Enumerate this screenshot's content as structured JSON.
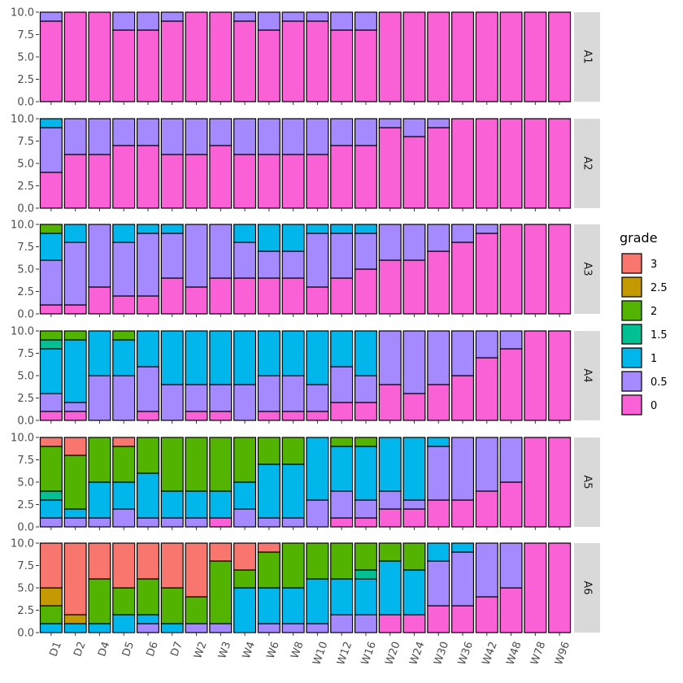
{
  "chart_data": {
    "type": "bar",
    "stacked": true,
    "facet": "rows",
    "categories": [
      "D1",
      "D2",
      "D4",
      "D5",
      "D6",
      "D7",
      "W2",
      "W3",
      "W4",
      "W6",
      "W8",
      "W10",
      "W12",
      "W16",
      "W20",
      "W24",
      "W30",
      "W36",
      "W42",
      "W48",
      "W78",
      "W96"
    ],
    "ylim": [
      0,
      10
    ],
    "yticks": [
      "0.0",
      "2.5",
      "5.0",
      "7.5",
      "10.0"
    ],
    "legend": {
      "title": "grade",
      "position": "right",
      "entries": [
        {
          "label": "3",
          "color": "#F8766D"
        },
        {
          "label": "2.5",
          "color": "#C49A00"
        },
        {
          "label": "2",
          "color": "#53B400"
        },
        {
          "label": "1.5",
          "color": "#00C094"
        },
        {
          "label": "1",
          "color": "#00B6EB"
        },
        {
          "label": "0.5",
          "color": "#A58AFF"
        },
        {
          "label": "0",
          "color": "#FB61D7"
        }
      ]
    },
    "panels": [
      {
        "label": "A1",
        "segments": [
          {
            "0": 9,
            "0.5": 1
          },
          {
            "0": 10
          },
          {
            "0": 10
          },
          {
            "0": 8,
            "0.5": 2
          },
          {
            "0": 8,
            "0.5": 2
          },
          {
            "0": 9,
            "0.5": 1
          },
          {
            "0": 10
          },
          {
            "0": 10
          },
          {
            "0": 9,
            "0.5": 1
          },
          {
            "0": 8,
            "0.5": 2
          },
          {
            "0": 9,
            "0.5": 1
          },
          {
            "0": 9,
            "0.5": 1
          },
          {
            "0": 8,
            "0.5": 2
          },
          {
            "0": 8,
            "0.5": 2
          },
          {
            "0": 10
          },
          {
            "0": 10
          },
          {
            "0": 10
          },
          {
            "0": 10
          },
          {
            "0": 10
          },
          {
            "0": 10
          },
          {
            "0": 10
          },
          {
            "0": 10
          }
        ]
      },
      {
        "label": "A2",
        "segments": [
          {
            "0": 4,
            "0.5": 5,
            "1": 1
          },
          {
            "0": 6,
            "0.5": 4
          },
          {
            "0": 6,
            "0.5": 4
          },
          {
            "0": 7,
            "0.5": 3
          },
          {
            "0": 7,
            "0.5": 3
          },
          {
            "0": 6,
            "0.5": 4
          },
          {
            "0": 6,
            "0.5": 4
          },
          {
            "0": 7,
            "0.5": 3
          },
          {
            "0": 6,
            "0.5": 4
          },
          {
            "0": 6,
            "0.5": 4
          },
          {
            "0": 6,
            "0.5": 4
          },
          {
            "0": 6,
            "0.5": 4
          },
          {
            "0": 7,
            "0.5": 3
          },
          {
            "0": 7,
            "0.5": 3
          },
          {
            "0": 9,
            "0.5": 1
          },
          {
            "0": 8,
            "0.5": 2
          },
          {
            "0": 9,
            "0.5": 1
          },
          {
            "0": 10
          },
          {
            "0": 10
          },
          {
            "0": 10
          },
          {
            "0": 10
          },
          {
            "0": 10
          }
        ]
      },
      {
        "label": "A3",
        "segments": [
          {
            "0": 1,
            "0.5": 5,
            "1": 3,
            "2": 1
          },
          {
            "0": 1,
            "0.5": 7,
            "1": 2
          },
          {
            "0": 3,
            "0.5": 7
          },
          {
            "0": 2,
            "0.5": 6,
            "1": 2
          },
          {
            "0": 2,
            "0.5": 7,
            "1": 1
          },
          {
            "0": 4,
            "0.5": 5,
            "1": 1
          },
          {
            "0": 3,
            "0.5": 7
          },
          {
            "0": 4,
            "0.5": 6
          },
          {
            "0": 4,
            "0.5": 4,
            "1": 2
          },
          {
            "0": 4,
            "0.5": 3,
            "1": 3
          },
          {
            "0": 4,
            "0.5": 3,
            "1": 3
          },
          {
            "0": 3,
            "0.5": 6,
            "1": 1
          },
          {
            "0": 4,
            "0.5": 5,
            "1": 1
          },
          {
            "0": 5,
            "0.5": 4,
            "1": 1
          },
          {
            "0": 6,
            "0.5": 4
          },
          {
            "0": 6,
            "0.5": 4
          },
          {
            "0": 7,
            "0.5": 3
          },
          {
            "0": 8,
            "0.5": 2
          },
          {
            "0": 9,
            "0.5": 1
          },
          {
            "0": 10
          },
          {
            "0": 10
          },
          {
            "0": 10
          }
        ]
      },
      {
        "label": "A4",
        "segments": [
          {
            "0": 1,
            "0.5": 2,
            "1": 5,
            "1.5": 1,
            "2": 1
          },
          {
            "0": 1,
            "0.5": 1,
            "1": 7,
            "2": 1
          },
          {
            "0.5": 5,
            "1": 5
          },
          {
            "0.5": 5,
            "1": 4,
            "2": 1
          },
          {
            "0": 1,
            "0.5": 5,
            "1": 4
          },
          {
            "0.5": 4,
            "1": 6
          },
          {
            "0": 1,
            "0.5": 3,
            "1": 6
          },
          {
            "0": 1,
            "0.5": 3,
            "1": 6
          },
          {
            "0.5": 4,
            "1": 6
          },
          {
            "0": 1,
            "0.5": 4,
            "1": 5
          },
          {
            "0": 1,
            "0.5": 4,
            "1": 5
          },
          {
            "0": 1,
            "0.5": 3,
            "1": 6
          },
          {
            "0": 2,
            "0.5": 4,
            "1": 4
          },
          {
            "0": 2,
            "0.5": 3,
            "1": 5
          },
          {
            "0": 4,
            "0.5": 6
          },
          {
            "0": 3,
            "0.5": 7
          },
          {
            "0": 4,
            "0.5": 6
          },
          {
            "0": 5,
            "0.5": 5
          },
          {
            "0": 7,
            "0.5": 3
          },
          {
            "0": 8,
            "0.5": 2
          },
          {
            "0": 10
          },
          {
            "0": 10
          }
        ]
      },
      {
        "label": "A5",
        "segments": [
          {
            "0.5": 1,
            "1": 2,
            "1.5": 1,
            "2": 5,
            "3": 1
          },
          {
            "0.5": 1,
            "1": 1,
            "2": 6,
            "3": 2
          },
          {
            "0.5": 1,
            "1": 4,
            "2": 5
          },
          {
            "0.5": 2,
            "1": 3,
            "2": 4,
            "3": 1
          },
          {
            "0.5": 1,
            "1": 5,
            "2": 4
          },
          {
            "0.5": 1,
            "1": 3,
            "2": 6
          },
          {
            "0.5": 1,
            "1": 3,
            "2": 6
          },
          {
            "0": 1,
            "1": 3,
            "2": 6
          },
          {
            "0.5": 2,
            "1": 3,
            "2": 5
          },
          {
            "0.5": 1,
            "1": 6,
            "2": 3
          },
          {
            "0.5": 1,
            "1": 6,
            "2": 3
          },
          {
            "0.5": 3,
            "1": 7
          },
          {
            "0": 1,
            "0.5": 3,
            "1": 5,
            "2": 1
          },
          {
            "0": 1,
            "0.5": 2,
            "1": 6,
            "2": 1
          },
          {
            "0": 2,
            "0.5": 2,
            "1": 6
          },
          {
            "0": 2,
            "0.5": 1,
            "1": 7
          },
          {
            "0": 3,
            "0.5": 6,
            "1": 1
          },
          {
            "0": 3,
            "0.5": 7
          },
          {
            "0": 4,
            "0.5": 6
          },
          {
            "0": 5,
            "0.5": 5
          },
          {
            "0": 10
          },
          {
            "0": 10
          }
        ]
      },
      {
        "label": "A6",
        "segments": [
          {
            "1": 1,
            "2": 2,
            "2.5": 2,
            "3": 5
          },
          {
            "1": 1,
            "2.5": 1,
            "3": 8
          },
          {
            "1": 1,
            "2": 5,
            "3": 4
          },
          {
            "1": 2,
            "2": 3,
            "3": 5
          },
          {
            "0.5": 1,
            "1": 1,
            "2": 4,
            "3": 4
          },
          {
            "1": 1,
            "2": 4,
            "3": 5
          },
          {
            "0.5": 1,
            "2": 3,
            "3": 6
          },
          {
            "0.5": 1,
            "2": 7,
            "3": 2
          },
          {
            "1": 5,
            "2": 2,
            "3": 3
          },
          {
            "0.5": 1,
            "1": 4,
            "2": 4,
            "3": 1
          },
          {
            "0.5": 1,
            "1": 4,
            "2": 5
          },
          {
            "0.5": 1,
            "1": 5,
            "2": 4
          },
          {
            "0.5": 2,
            "1": 4,
            "2": 4
          },
          {
            "0.5": 2,
            "1": 4,
            "1.5": 1,
            "2": 3
          },
          {
            "0": 2,
            "1": 6,
            "2": 2
          },
          {
            "0": 2,
            "1": 5,
            "2": 3
          },
          {
            "0": 3,
            "0.5": 5,
            "1": 2
          },
          {
            "0": 3,
            "0.5": 6,
            "1": 1
          },
          {
            "0": 4,
            "0.5": 6
          },
          {
            "0": 5,
            "0.5": 5
          },
          {
            "0": 10
          },
          {
            "0": 10
          }
        ]
      }
    ]
  }
}
